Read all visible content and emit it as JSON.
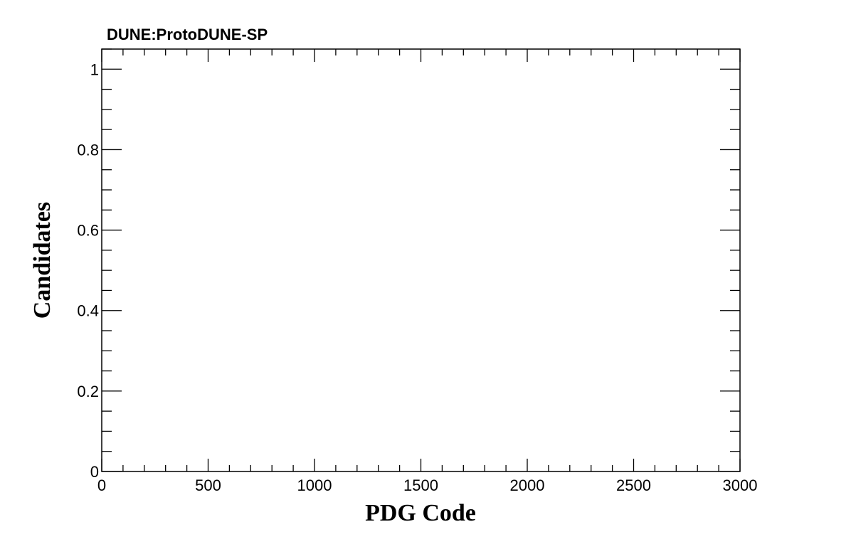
{
  "header": {
    "label": "DUNE:ProtoDUNE-SP"
  },
  "chart_data": {
    "type": "bar",
    "title": "",
    "xlabel": "PDG Code",
    "ylabel": "Candidates",
    "xlim": [
      0,
      3000
    ],
    "ylim": [
      0,
      1.05
    ],
    "x_ticks": [
      0,
      500,
      1000,
      1500,
      2000,
      2500,
      3000
    ],
    "x_tick_labels": [
      "0",
      "500",
      "1000",
      "1500",
      "2000",
      "2500",
      "3000"
    ],
    "y_ticks": [
      0,
      0.2,
      0.4,
      0.6,
      0.8,
      1
    ],
    "y_tick_labels": [
      "0",
      "0.2",
      "0.4",
      "0.6",
      "0.8",
      "1"
    ],
    "series": [],
    "grid": false,
    "colors": {
      "axis": "#000000",
      "background": "#ffffff"
    }
  }
}
